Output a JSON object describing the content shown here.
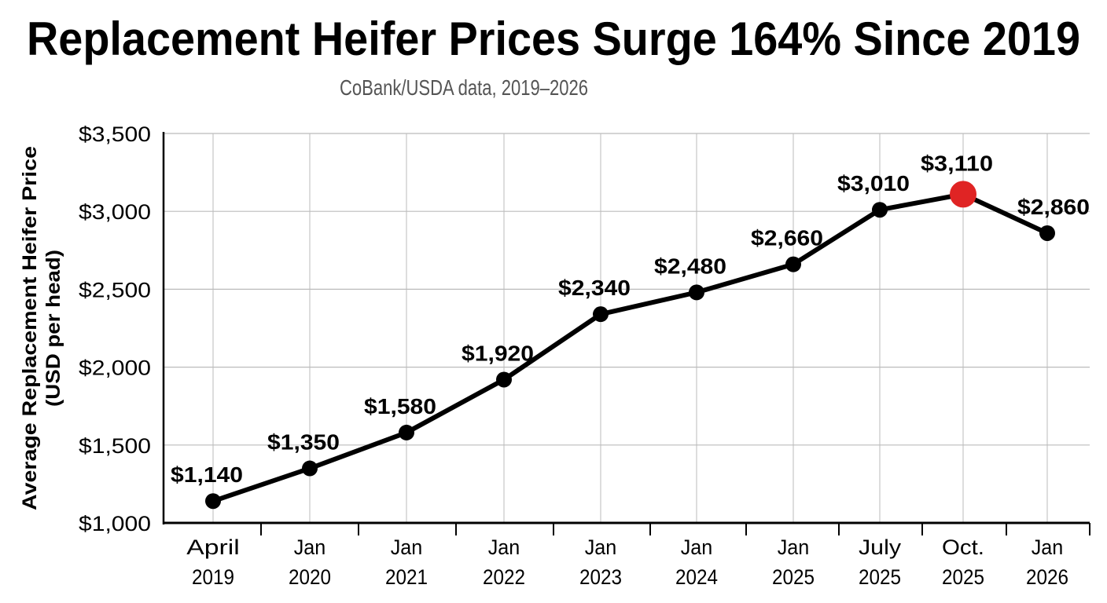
{
  "chart_data": {
    "type": "line",
    "title": "Replacement Heifer Prices Surge 164% Since 2019",
    "subtitle": "CoBank/USDA data, 2019–2026",
    "ylabel": [
      "Average Replacement Heifer Price",
      "(USD per head)"
    ],
    "xlabel": "",
    "categories": [
      [
        "April",
        "2019"
      ],
      [
        "Jan",
        "2020"
      ],
      [
        "Jan",
        "2021"
      ],
      [
        "Jan",
        "2022"
      ],
      [
        "Jan",
        "2023"
      ],
      [
        "Jan",
        "2024"
      ],
      [
        "Jan",
        "2025"
      ],
      [
        "July",
        "2025"
      ],
      [
        "Oct.",
        "2025"
      ],
      [
        "Jan",
        "2026"
      ]
    ],
    "values": [
      1140,
      1350,
      1580,
      1920,
      2340,
      2480,
      2660,
      3010,
      3110,
      2860
    ],
    "data_labels": [
      "$1,140",
      "$1,350",
      "$1,580",
      "$1,920",
      "$2,340",
      "$2,480",
      "$2,660",
      "$3,010",
      "$3,110",
      "$2,860"
    ],
    "highlight_index": 8,
    "ylim": [
      1000,
      3500
    ],
    "yticks": [
      1000,
      1500,
      2000,
      2500,
      3000,
      3500
    ],
    "ytick_labels": [
      "$1,000",
      "$1,500",
      "$2,000",
      "$2,500",
      "$3,000",
      "$3,500"
    ],
    "grid": true,
    "colors": {
      "line": "#000000",
      "highlight": "#e02424",
      "grid": "#bbbbbb"
    }
  }
}
